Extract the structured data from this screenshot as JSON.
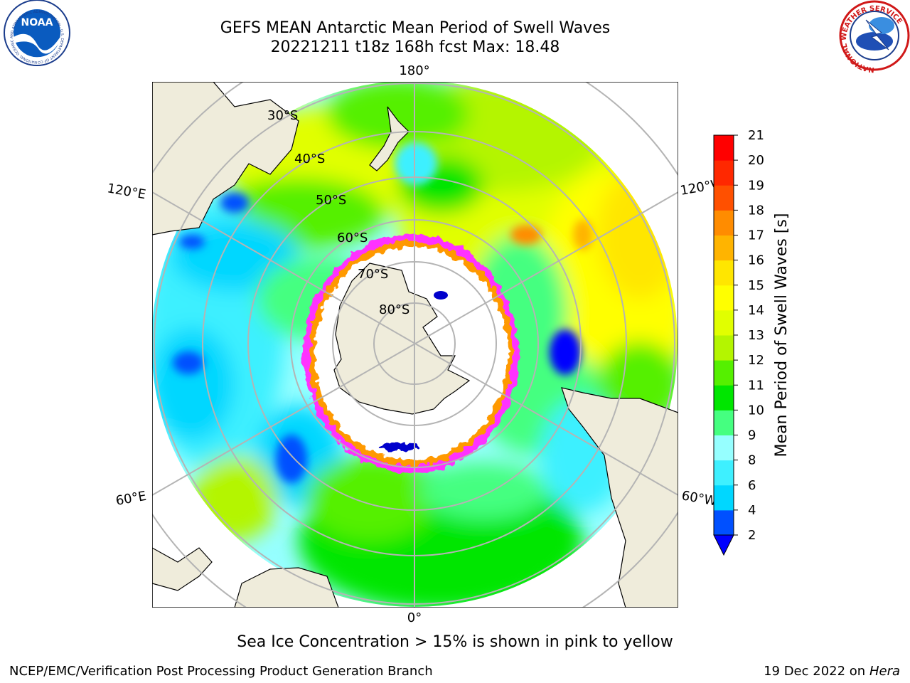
{
  "title": {
    "line1": "GEFS MEAN Antarctic Mean Period of Swell Waves",
    "line2": "20221211 t18z 168h fcst   Max: 18.48"
  },
  "map": {
    "projection": "South Polar Stereographic",
    "land_color": "#efecdb",
    "grid_color": "#b4b4b4",
    "latitude_labels": [
      "30°S",
      "40°S",
      "50°S",
      "60°S",
      "70°S",
      "80°S"
    ],
    "longitude_labels": {
      "top": "180°",
      "bottom": "0°",
      "upper_left": "120°E",
      "upper_right": "120°W",
      "lower_left": "60°E",
      "lower_right": "60°W"
    },
    "sea_ice_colors": [
      "#ff33ff",
      "#ff9900",
      "#ffff66",
      "#ffffff",
      "#0000cc"
    ]
  },
  "colorbar": {
    "label": "Mean Period of Swell Waves [s]",
    "ticks": [
      "2",
      "4",
      "6",
      "8",
      "9",
      "10",
      "11",
      "12",
      "13",
      "14",
      "15",
      "16",
      "17",
      "18",
      "19",
      "20",
      "21"
    ],
    "colors": [
      "#0050ff",
      "#00d7ff",
      "#3ef0ff",
      "#96ffff",
      "#45ff80",
      "#00e600",
      "#55f000",
      "#b4f500",
      "#e1ff00",
      "#ffff00",
      "#ffe600",
      "#ffb400",
      "#ff8c00",
      "#ff5000",
      "#ff2800",
      "#ff0000"
    ],
    "extend_color": "#0000ff"
  },
  "logos": {
    "noaa": {
      "text": "NOAA",
      "ring_text": "NATIONAL OCEANIC AND ATMOSPHERIC ADMINISTRATION · U.S. DEPARTMENT OF COMMERCE"
    },
    "nws": {
      "ring_text": "NATIONAL WEATHER SERVICE"
    }
  },
  "footnote": "Sea Ice Concentration > 15% is shown in pink to yellow",
  "credit_left": "NCEP/EMC/Verification Post Processing Product Generation Branch",
  "credit_right": {
    "date": "19 Dec 2022",
    "on": "on",
    "host": "Hera"
  }
}
